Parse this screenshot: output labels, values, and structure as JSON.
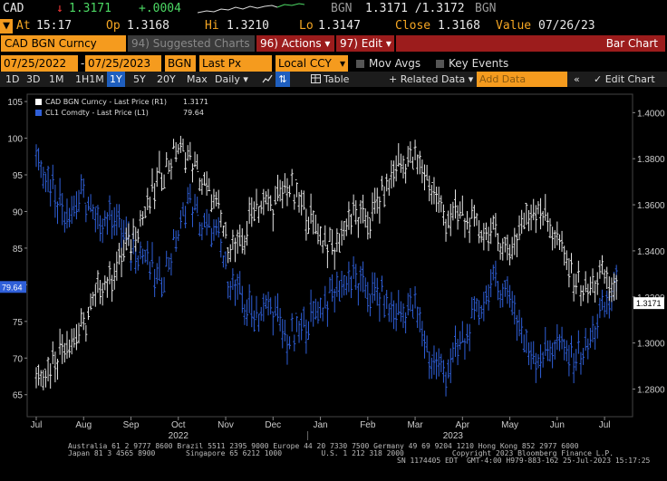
{
  "ticker": {
    "symbol": "CAD",
    "arrow": "↓",
    "last": "1.3171",
    "change": "+.0004",
    "source": "BGN",
    "bid_ask": "1.3171 /1.3172",
    "source2": "BGN"
  },
  "quote": {
    "at_label": "At",
    "at_time": "15:17",
    "op_label": "Op",
    "op": "1.3168",
    "hi_label": "Hi",
    "hi": "1.3210",
    "lo_label": "Lo",
    "lo": "1.3147",
    "close_label": "Close",
    "close": "1.3168",
    "value_label": "Value",
    "value_date": "07/26/23"
  },
  "toolbar": {
    "security": "CAD BGN Curncy",
    "suggested": "94) Suggested Charts",
    "actions": "96) Actions ▾",
    "edit": "97) Edit ▾",
    "bar_chart": "Bar Chart"
  },
  "inputs": {
    "start_date": "07/25/2022",
    "separator": "-",
    "end_date": "07/25/2023",
    "source": "BGN",
    "field": "Last Px",
    "currency": "Local CCY",
    "mov_avgs": "Mov Avgs",
    "key_events": "Key Events"
  },
  "range": {
    "buttons": [
      "1D",
      "3D",
      "1M",
      "1H1M",
      "1Y",
      "5Y",
      "20Y",
      "Max"
    ],
    "selected": "1Y",
    "period": "Daily ▾",
    "table": "Table",
    "related_data": "+ Related Data ▾",
    "add_data_placeholder": "Add Data",
    "edit_chart": "✓ Edit Chart",
    "arrows": "«"
  },
  "chart_data": {
    "type": "bar",
    "legend": [
      {
        "name": "CAD BGN Curncy - Last Price (R1)",
        "value": "1.3171",
        "color": "#ffffff"
      },
      {
        "name": "CL1 Comdty - Last Price (L1)",
        "value": "79.64",
        "color": "#2f5fd8"
      }
    ],
    "left_axis": {
      "ticks": [
        65,
        70,
        75,
        80,
        85,
        90,
        95,
        100,
        105
      ],
      "ylim": [
        62,
        106
      ]
    },
    "right_axis": {
      "ticks": [
        "1.2800",
        "1.3000",
        "1.3200",
        "1.3400",
        "1.3600",
        "1.3800",
        "1.4000"
      ],
      "ylim": [
        1.268,
        1.408
      ]
    },
    "x_months": [
      "Jul",
      "Aug",
      "Sep",
      "Oct",
      "Nov",
      "Dec",
      "Jan",
      "Feb",
      "Mar",
      "Apr",
      "May",
      "Jun",
      "Jul"
    ],
    "years": [
      "2022",
      "2023"
    ],
    "last_left_label": "79.64",
    "last_right_label": "1.3171",
    "cad_series": {
      "name": "CAD BGN Curncy",
      "x_month_index": [
        0,
        0.3,
        0.6,
        1,
        1.3,
        1.6,
        2,
        2.3,
        2.6,
        3,
        3.2,
        3.5,
        3.8,
        4,
        4.3,
        4.6,
        5,
        5.3,
        5.6,
        6,
        6.3,
        6.6,
        7,
        7.3,
        7.6,
        8,
        8.3,
        8.6,
        9,
        9.3,
        9.6,
        10,
        10.3,
        10.6,
        11,
        11.3,
        11.6,
        12,
        12.3
      ],
      "values": [
        1.286,
        1.29,
        1.3,
        1.306,
        1.323,
        1.329,
        1.345,
        1.357,
        1.372,
        1.385,
        1.382,
        1.37,
        1.36,
        1.345,
        1.34,
        1.36,
        1.36,
        1.368,
        1.36,
        1.347,
        1.34,
        1.355,
        1.353,
        1.363,
        1.377,
        1.38,
        1.37,
        1.355,
        1.355,
        1.35,
        1.348,
        1.34,
        1.353,
        1.36,
        1.345,
        1.33,
        1.322,
        1.33,
        1.318
      ]
    },
    "cl_series": {
      "name": "CL1 Comdty",
      "x_month_index": [
        0,
        0.3,
        0.6,
        1,
        1.3,
        1.6,
        2,
        2.3,
        2.6,
        3,
        3.2,
        3.5,
        3.8,
        4,
        4.3,
        4.6,
        5,
        5.3,
        5.6,
        6,
        6.3,
        6.6,
        7,
        7.3,
        7.6,
        8,
        8.3,
        8.6,
        9,
        9.3,
        9.6,
        10,
        10.3,
        10.6,
        11,
        11.3,
        11.6,
        12,
        12.3
      ],
      "values": [
        98,
        94,
        90,
        92,
        88,
        90,
        85,
        84,
        80,
        87,
        92,
        88,
        87,
        82,
        78,
        76,
        77,
        72,
        74,
        77,
        79,
        81,
        79,
        78,
        76,
        77,
        70,
        68,
        72,
        76,
        80,
        79,
        72,
        70,
        72,
        70,
        71,
        77,
        80
      ]
    }
  },
  "footer": {
    "line1": "Australia 61 2 9777 8600 Brazil 5511 2395 9000 Europe 44 20 7330 7500 Germany 49 69 9204 1210 Hong Kong 852 2977 6000",
    "line2": "Japan 81 3 4565 8900       Singapore 65 6212 1000         U.S. 1 212 318 2000           Copyright 2023 Bloomberg Finance L.P.",
    "line3": "SN 1174405 EDT  GMT-4:00 H979-883-162 25-Jul-2023 15:17:25"
  },
  "colors": {
    "orange": "#f59b1e",
    "red_bar": "#9c1c1c",
    "cad_series": "#ffffff",
    "cl_series": "#2f5fd8",
    "selected_range": "#1f5fbf"
  }
}
